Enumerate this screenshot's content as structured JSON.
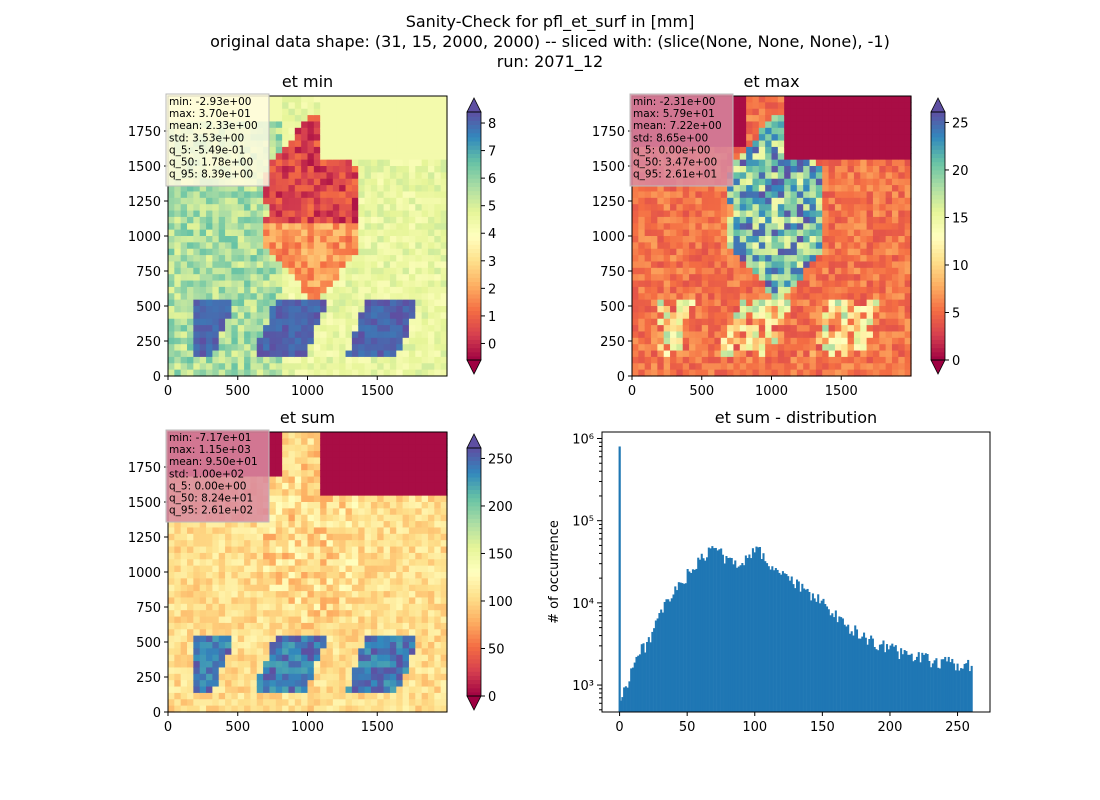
{
  "figure": {
    "title_lines": [
      "Sanity-Check for pfl_et_surf in [mm]",
      "original data shape: (31, 15, 2000, 2000) -- sliced with: (slice(None, None, None), -1)",
      "run: 2071_12"
    ]
  },
  "colormap": "Spectral",
  "chart_data": [
    {
      "type": "heatmap",
      "title": "et min",
      "xlim": [
        0,
        2000
      ],
      "ylim": [
        0,
        2000
      ],
      "xticks": [
        0,
        500,
        1000,
        1500
      ],
      "yticks": [
        0,
        250,
        500,
        750,
        1000,
        1250,
        1500,
        1750
      ],
      "colorbar": {
        "min": -0.6,
        "max": 8.4,
        "ticks": [
          0,
          1,
          2,
          3,
          4,
          5,
          6,
          7,
          8
        ],
        "extend": "both"
      },
      "stats_box_color": "#fffbe0",
      "stats": [
        "min: -2.93e+00",
        "max: 3.70e+01",
        "mean: 2.33e+00",
        "std: 3.53e+00",
        "q_5: -5.49e-01",
        "q_50: 1.78e+00",
        "q_95: 8.39e+00"
      ]
    },
    {
      "type": "heatmap",
      "title": "et max",
      "xlim": [
        0,
        2000
      ],
      "ylim": [
        0,
        2000
      ],
      "xticks": [
        0,
        500,
        1000,
        1500
      ],
      "yticks": [
        0,
        250,
        500,
        750,
        1000,
        1250,
        1500,
        1750
      ],
      "colorbar": {
        "min": 0,
        "max": 26.1,
        "ticks": [
          0,
          5,
          10,
          15,
          20,
          25
        ],
        "extend": "both"
      },
      "stats_box_color": "#d98aa0",
      "stats": [
        "min: -2.31e+00",
        "max: 5.79e+01",
        "mean: 7.22e+00",
        "std: 8.65e+00",
        "q_5: 0.00e+00",
        "q_50: 3.47e+00",
        "q_95: 2.61e+01"
      ]
    },
    {
      "type": "heatmap",
      "title": "et sum",
      "xlim": [
        0,
        2000
      ],
      "ylim": [
        0,
        2000
      ],
      "xticks": [
        0,
        500,
        1000,
        1500
      ],
      "yticks": [
        0,
        250,
        500,
        750,
        1000,
        1250,
        1500,
        1750
      ],
      "colorbar": {
        "min": 0,
        "max": 261,
        "ticks": [
          0,
          50,
          100,
          150,
          200,
          250
        ],
        "extend": "both"
      },
      "stats_box_color": "#d98aa0",
      "stats": [
        "min: -7.17e+01",
        "max: 1.15e+03",
        "mean: 9.50e+01",
        "std: 1.00e+02",
        "q_5: 0.00e+00",
        "q_50: 8.24e+01",
        "q_95: 2.61e+02"
      ]
    },
    {
      "type": "bar",
      "title": "et sum - distribution",
      "ylabel": "# of occurrence",
      "yscale": "log",
      "xlim": [
        -13,
        274
      ],
      "ylim": [
        470,
        1200000
      ],
      "xticks": [
        0,
        50,
        100,
        150,
        200,
        250
      ],
      "yticks": [
        {
          "value": 1000,
          "label": "10³"
        },
        {
          "value": 10000,
          "label": "10⁴"
        },
        {
          "value": 100000,
          "label": "10⁵"
        },
        {
          "value": 1000000,
          "label": "10⁶"
        }
      ],
      "bar_color": "#1f77b4",
      "spike": {
        "x": 0,
        "value": 800000
      },
      "bins": {
        "start": 0,
        "end": 261,
        "count": 200
      },
      "profile": [
        [
          0,
          500
        ],
        [
          1,
          700
        ],
        [
          5,
          1000
        ],
        [
          10,
          1800
        ],
        [
          15,
          2500
        ],
        [
          20,
          3200
        ],
        [
          25,
          4500
        ],
        [
          30,
          7000
        ],
        [
          35,
          10000
        ],
        [
          40,
          13000
        ],
        [
          45,
          17000
        ],
        [
          50,
          22000
        ],
        [
          55,
          27000
        ],
        [
          60,
          33000
        ],
        [
          65,
          40000
        ],
        [
          70,
          48000
        ],
        [
          75,
          40000
        ],
        [
          80,
          33000
        ],
        [
          85,
          30000
        ],
        [
          90,
          32000
        ],
        [
          95,
          38000
        ],
        [
          100,
          45000
        ],
        [
          105,
          40000
        ],
        [
          110,
          30000
        ],
        [
          115,
          26000
        ],
        [
          120,
          23000
        ],
        [
          125,
          19000
        ],
        [
          130,
          17000
        ],
        [
          135,
          15000
        ],
        [
          140,
          13000
        ],
        [
          145,
          12000
        ],
        [
          150,
          10000
        ],
        [
          155,
          8000
        ],
        [
          160,
          7000
        ],
        [
          165,
          6000
        ],
        [
          170,
          5000
        ],
        [
          175,
          4500
        ],
        [
          180,
          4000
        ],
        [
          185,
          3500
        ],
        [
          190,
          3200
        ],
        [
          195,
          3000
        ],
        [
          200,
          2800
        ],
        [
          205,
          2600
        ],
        [
          210,
          2400
        ],
        [
          215,
          2300
        ],
        [
          220,
          2200
        ],
        [
          225,
          2100
        ],
        [
          230,
          2000
        ],
        [
          240,
          1900
        ],
        [
          250,
          1800
        ],
        [
          261,
          1700
        ]
      ]
    }
  ]
}
